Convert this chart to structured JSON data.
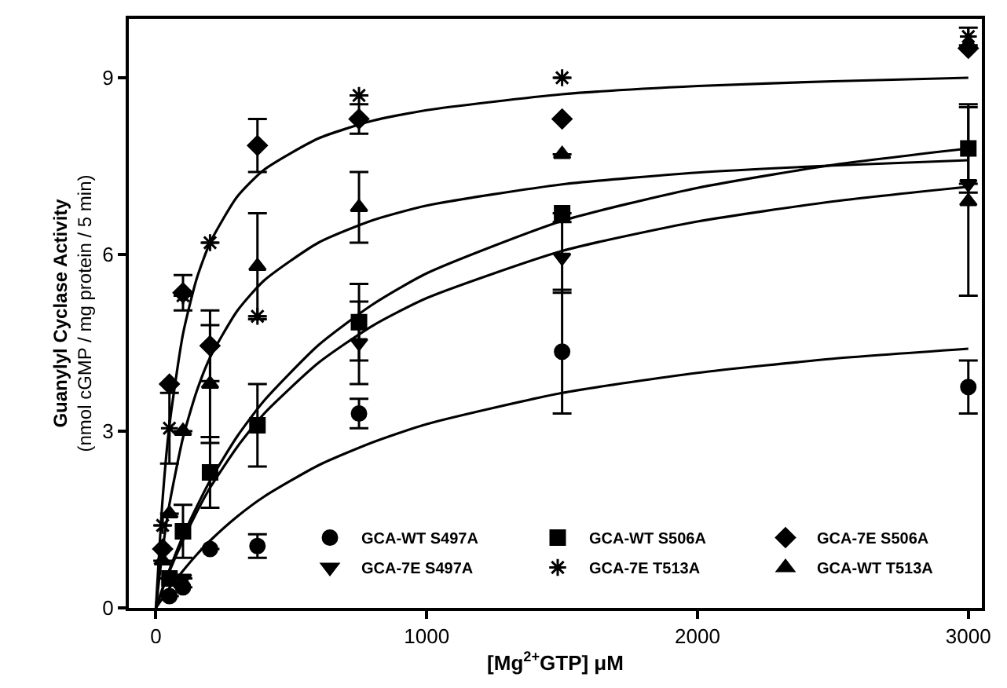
{
  "chart_data": {
    "type": "scatter",
    "xlabel": "[Mg$^{2+}$GTP] μM",
    "ylabel": "Guanylyl Cyclase Activity\n(nmol cGMP / mg protein / 5 min)",
    "x": [
      25,
      50,
      100,
      200,
      375,
      750,
      1500,
      3000
    ],
    "xlim": [
      -100,
      3050
    ],
    "xticks": [
      0,
      1000,
      2000,
      3000
    ],
    "ylim": [
      0,
      10
    ],
    "yticks": [
      0,
      3,
      6,
      9
    ],
    "legend": "bottom right",
    "series": [
      {
        "name": "GCA-WT S497A",
        "color": "#000000",
        "marker": "circle",
        "values": [
          null,
          0.2,
          0.35,
          1.0,
          1.05,
          3.3,
          4.35,
          3.75
        ],
        "errors": [
          null,
          null,
          null,
          null,
          0.2,
          0.25,
          1.05,
          0.45
        ]
      },
      {
        "name": "GCA-WT S506A",
        "color": "#000000",
        "marker": "square",
        "values": [
          null,
          0.5,
          1.3,
          2.3,
          3.1,
          4.85,
          6.7,
          7.8
        ],
        "errors": [
          null,
          null,
          0.45,
          0.6,
          0.7,
          0.65,
          null,
          0.75
        ]
      },
      {
        "name": "GCA-7E S506A",
        "color": "#000000",
        "marker": "diamond",
        "values": [
          1.0,
          3.8,
          5.35,
          4.45,
          7.85,
          8.3,
          8.3,
          9.5
        ],
        "errors": [
          null,
          null,
          0.3,
          0.6,
          0.45,
          0.25,
          null,
          null
        ]
      },
      {
        "name": "GCA-7E S497A",
        "color": "#000000",
        "marker": "triangle-down",
        "values": [
          null,
          null,
          0.5,
          null,
          null,
          4.5,
          5.95,
          7.2
        ],
        "errors": [
          null,
          null,
          null,
          null,
          null,
          0.7,
          0.6,
          null
        ]
      },
      {
        "name": "GCA-7E T513A",
        "color": "#000000",
        "marker": "cross",
        "values": [
          1.4,
          3.05,
          5.3,
          6.2,
          4.95,
          8.7,
          9.0,
          9.7
        ],
        "errors": [
          null,
          0.6,
          null,
          null,
          null,
          null,
          null,
          0.15
        ]
      },
      {
        "name": "GCA-WT T513A",
        "color": "#000000",
        "marker": "triangle",
        "values": [
          0.8,
          1.6,
          3.0,
          3.8,
          5.8,
          6.8,
          7.7,
          6.9
        ],
        "errors": [
          null,
          null,
          null,
          1.0,
          0.9,
          0.6,
          null,
          1.6
        ]
      },
      {
        "type": "line",
        "color": "#000000",
        "x": [
          0,
          25,
          50,
          100,
          150,
          200,
          300,
          400,
          600,
          800,
          1000,
          1500,
          2000,
          2500,
          3000
        ],
        "values": [
          0,
          0.17,
          0.34,
          0.63,
          0.9,
          1.14,
          1.55,
          1.89,
          2.42,
          2.81,
          3.12,
          3.65,
          3.99,
          4.23,
          4.4
        ]
      },
      {
        "type": "line",
        "color": "#000000",
        "x": [
          0,
          25,
          50,
          100,
          150,
          200,
          300,
          400,
          600,
          800,
          1000,
          1500,
          2000,
          2500,
          3000
        ],
        "values": [
          0,
          0.34,
          0.65,
          1.22,
          1.71,
          2.16,
          2.91,
          3.52,
          4.46,
          5.15,
          5.68,
          6.57,
          7.13,
          7.52,
          7.8
        ]
      },
      {
        "type": "line",
        "color": "#000000",
        "x": [
          0,
          25,
          50,
          100,
          150,
          200,
          300,
          400,
          600,
          800,
          1000,
          1500,
          2000,
          2500,
          3000
        ],
        "values": [
          0,
          1.86,
          3.1,
          4.65,
          5.58,
          6.2,
          6.98,
          7.44,
          7.97,
          8.27,
          8.45,
          8.72,
          8.86,
          8.94,
          9.0
        ]
      },
      {
        "type": "line",
        "color": "#000000",
        "x": [
          0,
          25,
          50,
          100,
          150,
          200,
          300,
          400,
          600,
          800,
          1000,
          1500,
          2000,
          2500,
          3000
        ],
        "values": [
          0,
          0.32,
          0.62,
          1.15,
          1.62,
          2.04,
          2.73,
          3.3,
          4.16,
          4.79,
          5.26,
          6.06,
          6.56,
          6.9,
          7.15
        ]
      },
      {
        "type": "line",
        "color": "#000000",
        "x": [
          0,
          25,
          50,
          100,
          150,
          200,
          300,
          400,
          600,
          800,
          1000,
          1500,
          2000,
          2500,
          3000
        ],
        "values": [
          0,
          0.99,
          1.76,
          2.89,
          3.67,
          4.25,
          5.04,
          5.56,
          6.2,
          6.58,
          6.83,
          7.19,
          7.39,
          7.51,
          7.6
        ]
      }
    ]
  }
}
